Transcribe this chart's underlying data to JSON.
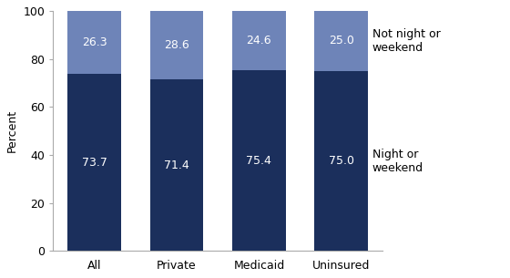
{
  "categories": [
    "All",
    "Private",
    "Medicaid",
    "Uninsured"
  ],
  "night_values": [
    73.7,
    71.4,
    75.4,
    75.0
  ],
  "not_night_values": [
    26.3,
    28.6,
    24.6,
    25.0
  ],
  "night_color": "#1b2f5c",
  "not_night_color": "#6e84b8",
  "ylabel": "Percent",
  "ylim": [
    0,
    100
  ],
  "yticks": [
    0,
    20,
    40,
    60,
    80,
    100
  ],
  "legend_night": "Night or\nweekend",
  "legend_not_night": "Not night or\nweekend",
  "bar_width": 0.65,
  "label_fontsize": 9,
  "tick_fontsize": 9,
  "legend_fontsize": 9,
  "background_color": "#ffffff"
}
